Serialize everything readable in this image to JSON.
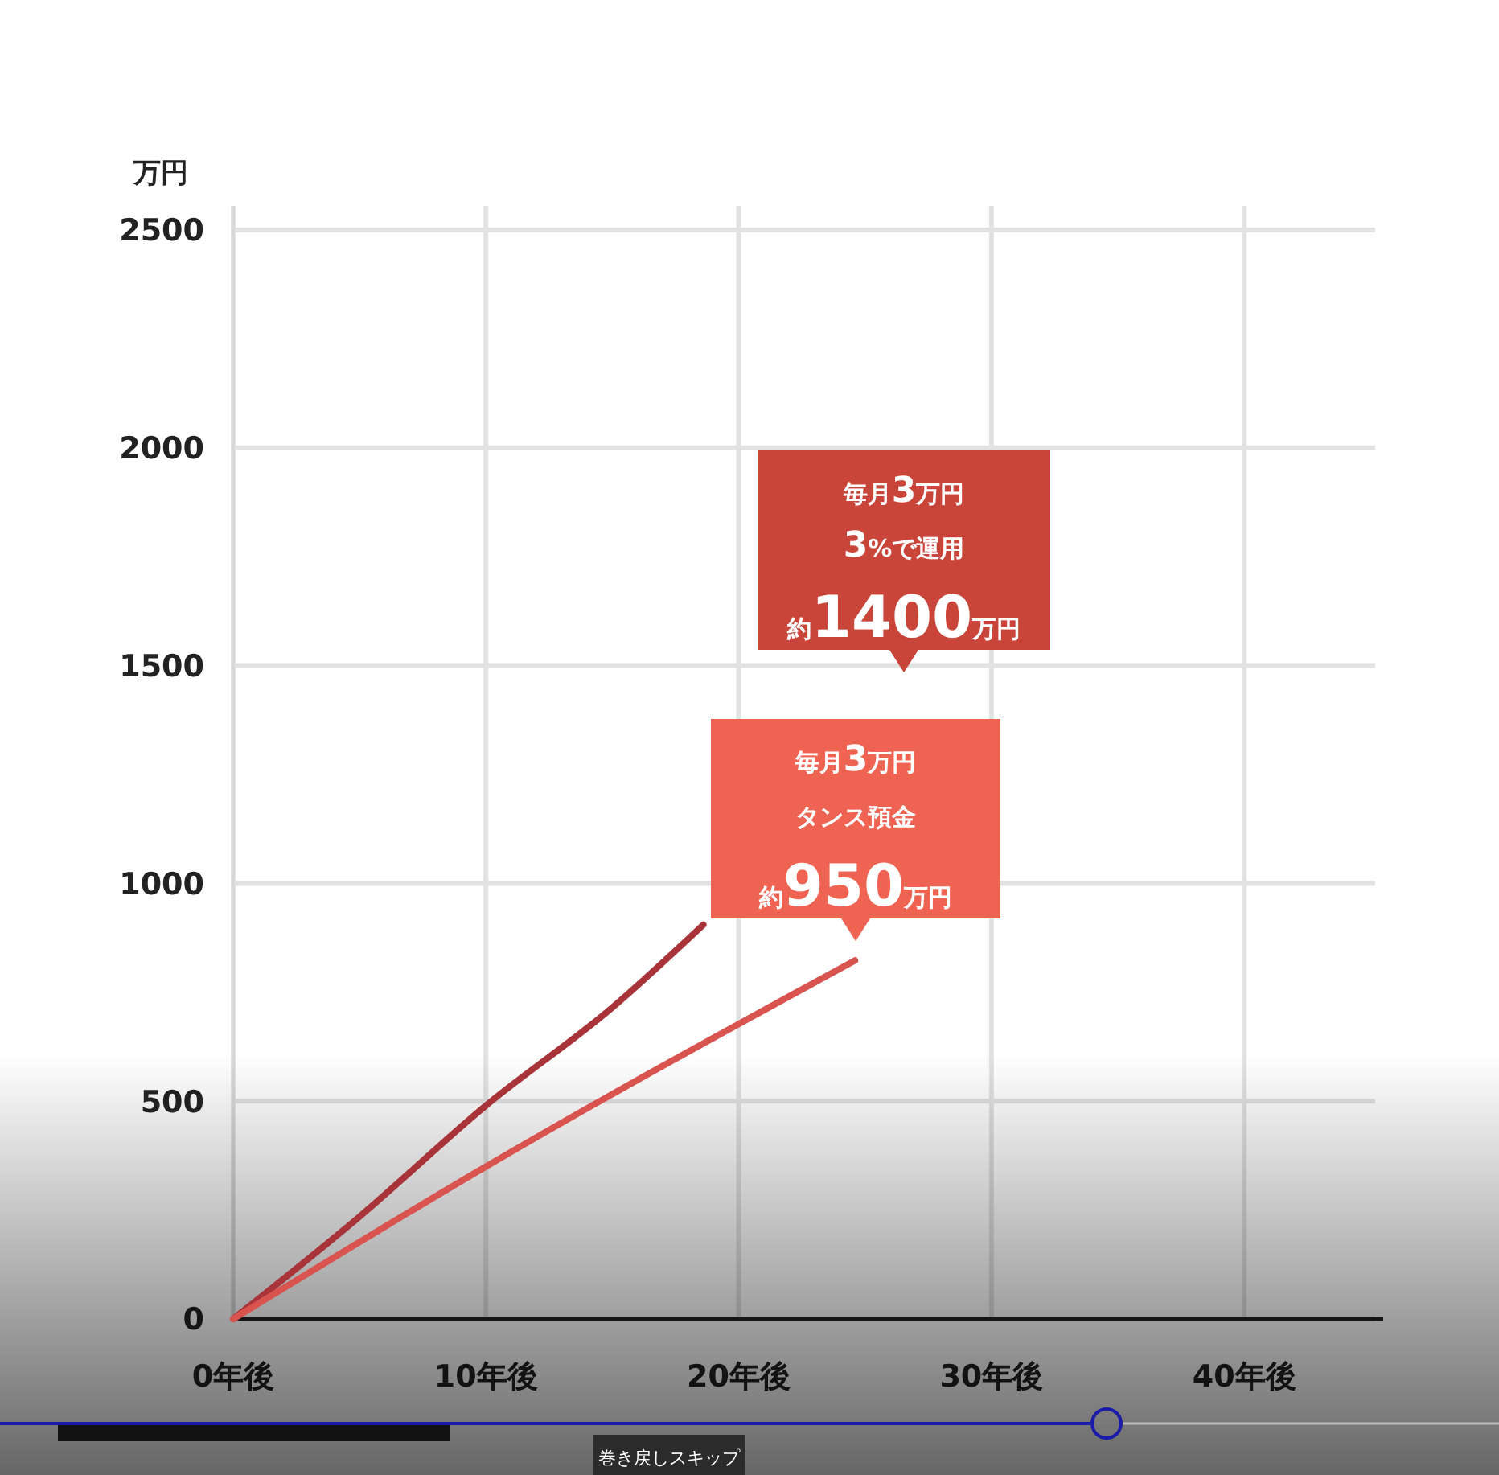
{
  "chart_data": {
    "type": "line",
    "ylabel": "万円",
    "xlim": [
      0,
      45.5
    ],
    "xticks": [
      {
        "value": 0,
        "label": "0年後"
      },
      {
        "value": 10,
        "label": "10年後"
      },
      {
        "value": 20,
        "label": "20年後"
      },
      {
        "value": 30,
        "label": "30年後"
      },
      {
        "value": 40,
        "label": "40年後"
      }
    ],
    "ylim": [
      0,
      2500
    ],
    "yticks": [
      0,
      500,
      1000,
      1500,
      2000,
      2500
    ],
    "grid": true,
    "marker": "none",
    "line_style": "solid",
    "series": [
      {
        "color": "#a8343a",
        "x": [
          0,
          5,
          10,
          15,
          18.6
        ],
        "values": [
          0,
          235,
          490,
          715,
          905
        ]
      },
      {
        "color": "#d9534f",
        "x": [
          0,
          10,
          24.6
        ],
        "values": [
          0,
          350,
          823
        ]
      }
    ],
    "annotations": [
      "毎月3万円",
      "3%で運用",
      "約1400万円",
      "毎月3万円",
      "タンス預金",
      "約950万円",
      "巻き戻しスキップ"
    ]
  }
}
